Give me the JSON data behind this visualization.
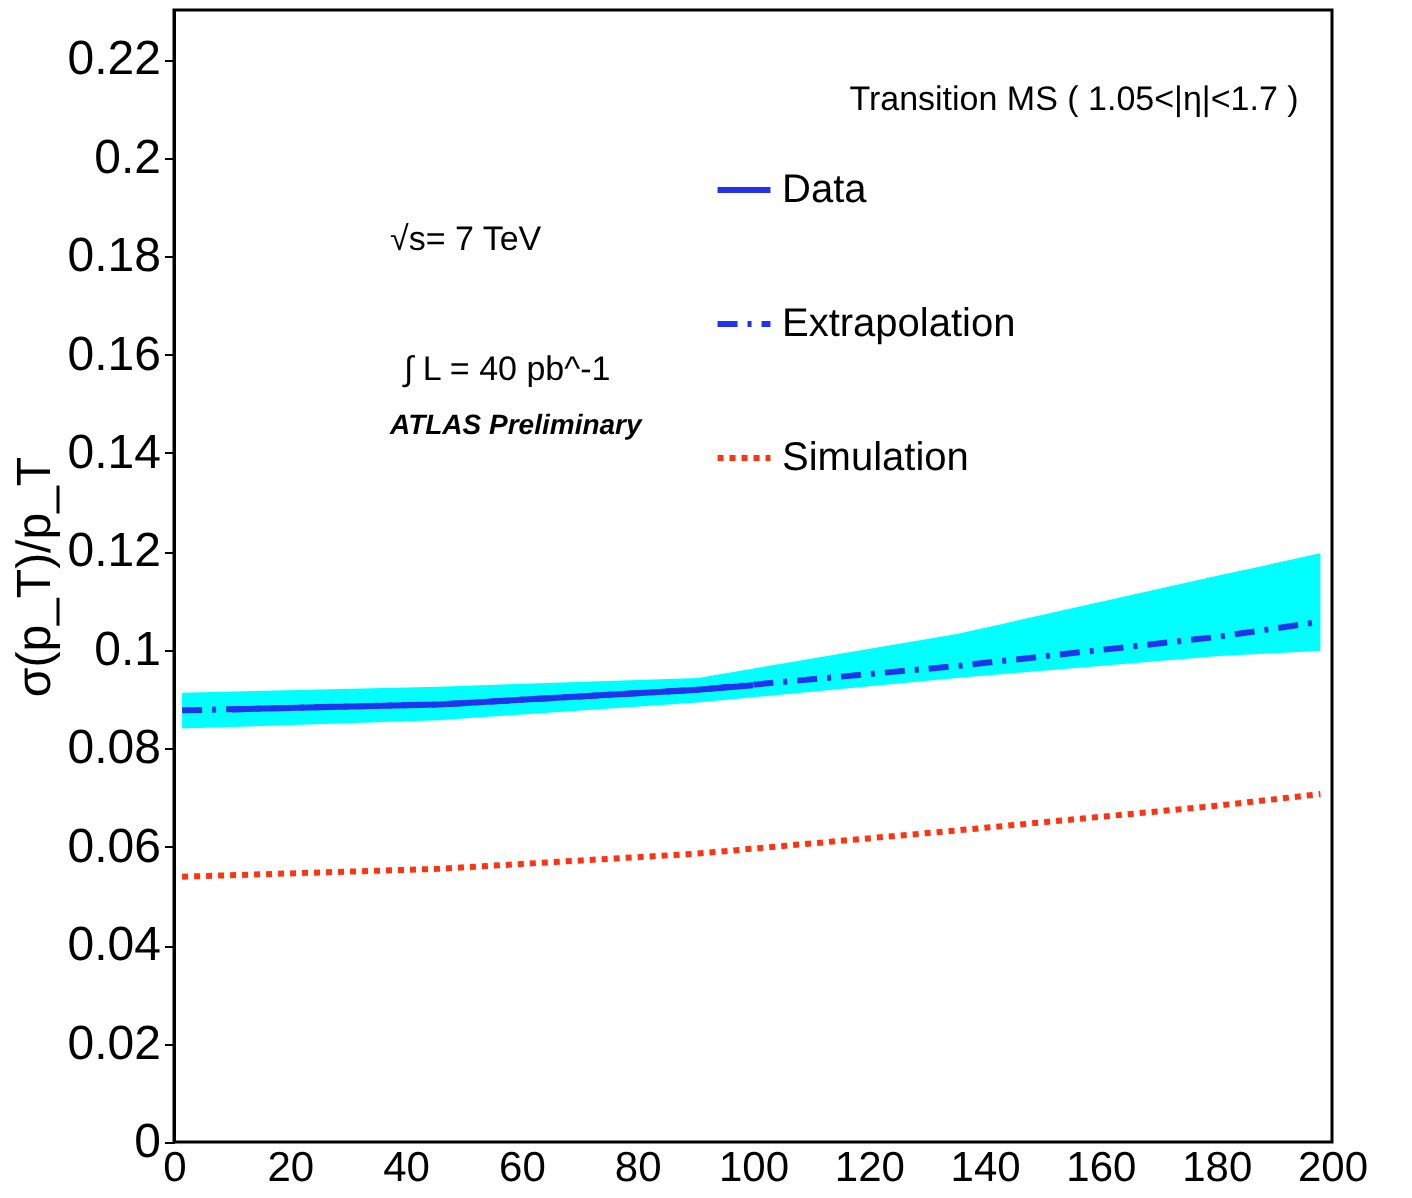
{
  "chart_data": {
    "type": "line",
    "ylabel": "σ(p_T)/p_T",
    "annotations": [
      "Transition MS ( 1.05<|η|<1.7 )",
      "√s= 7 TeV",
      "∫ L = 40 pb^-1",
      "ATLAS Preliminary"
    ],
    "series": [
      {
        "name": "Extrapolation",
        "color": "#2233ee",
        "line_style": "dashed",
        "x": [
          1.4,
          45.7,
          90.5,
          135.2,
          180,
          198
        ],
        "values": [
          0.0877,
          0.0889,
          0.0919,
          0.0967,
          0.1026,
          0.1057
        ],
        "lower": [
          0.084,
          0.0857,
          0.0893,
          0.0943,
          0.0987,
          0.0998
        ],
        "upper": [
          0.0913,
          0.0925,
          0.0943,
          0.1032,
          0.115,
          0.1196
        ]
      },
      {
        "name": "Data",
        "color": "#2233ee",
        "line_style": "solid",
        "x": [
          10,
          45.7,
          90.5,
          100
        ],
        "values": [
          0.0879,
          0.0889,
          0.0919,
          0.0928
        ]
      },
      {
        "name": "Simulation",
        "color": "#ff3311",
        "line_style": "dotted",
        "x": [
          1.4,
          45.7,
          90.5,
          135.2,
          180,
          198
        ],
        "values": [
          0.0539,
          0.0555,
          0.0586,
          0.0633,
          0.0683,
          0.0707
        ]
      }
    ],
    "xlim": [
      0,
      200
    ],
    "xticks": [
      0,
      20,
      40,
      60,
      80,
      100,
      120,
      140,
      160,
      180,
      200
    ],
    "ylim": [
      0,
      0.23
    ],
    "yticks": [
      0,
      0.02,
      0.04,
      0.06,
      0.08,
      0.1,
      0.12,
      0.14,
      0.16,
      0.18,
      0.2,
      0.22
    ],
    "grid": false,
    "legend": "top right",
    "marker": "none"
  }
}
